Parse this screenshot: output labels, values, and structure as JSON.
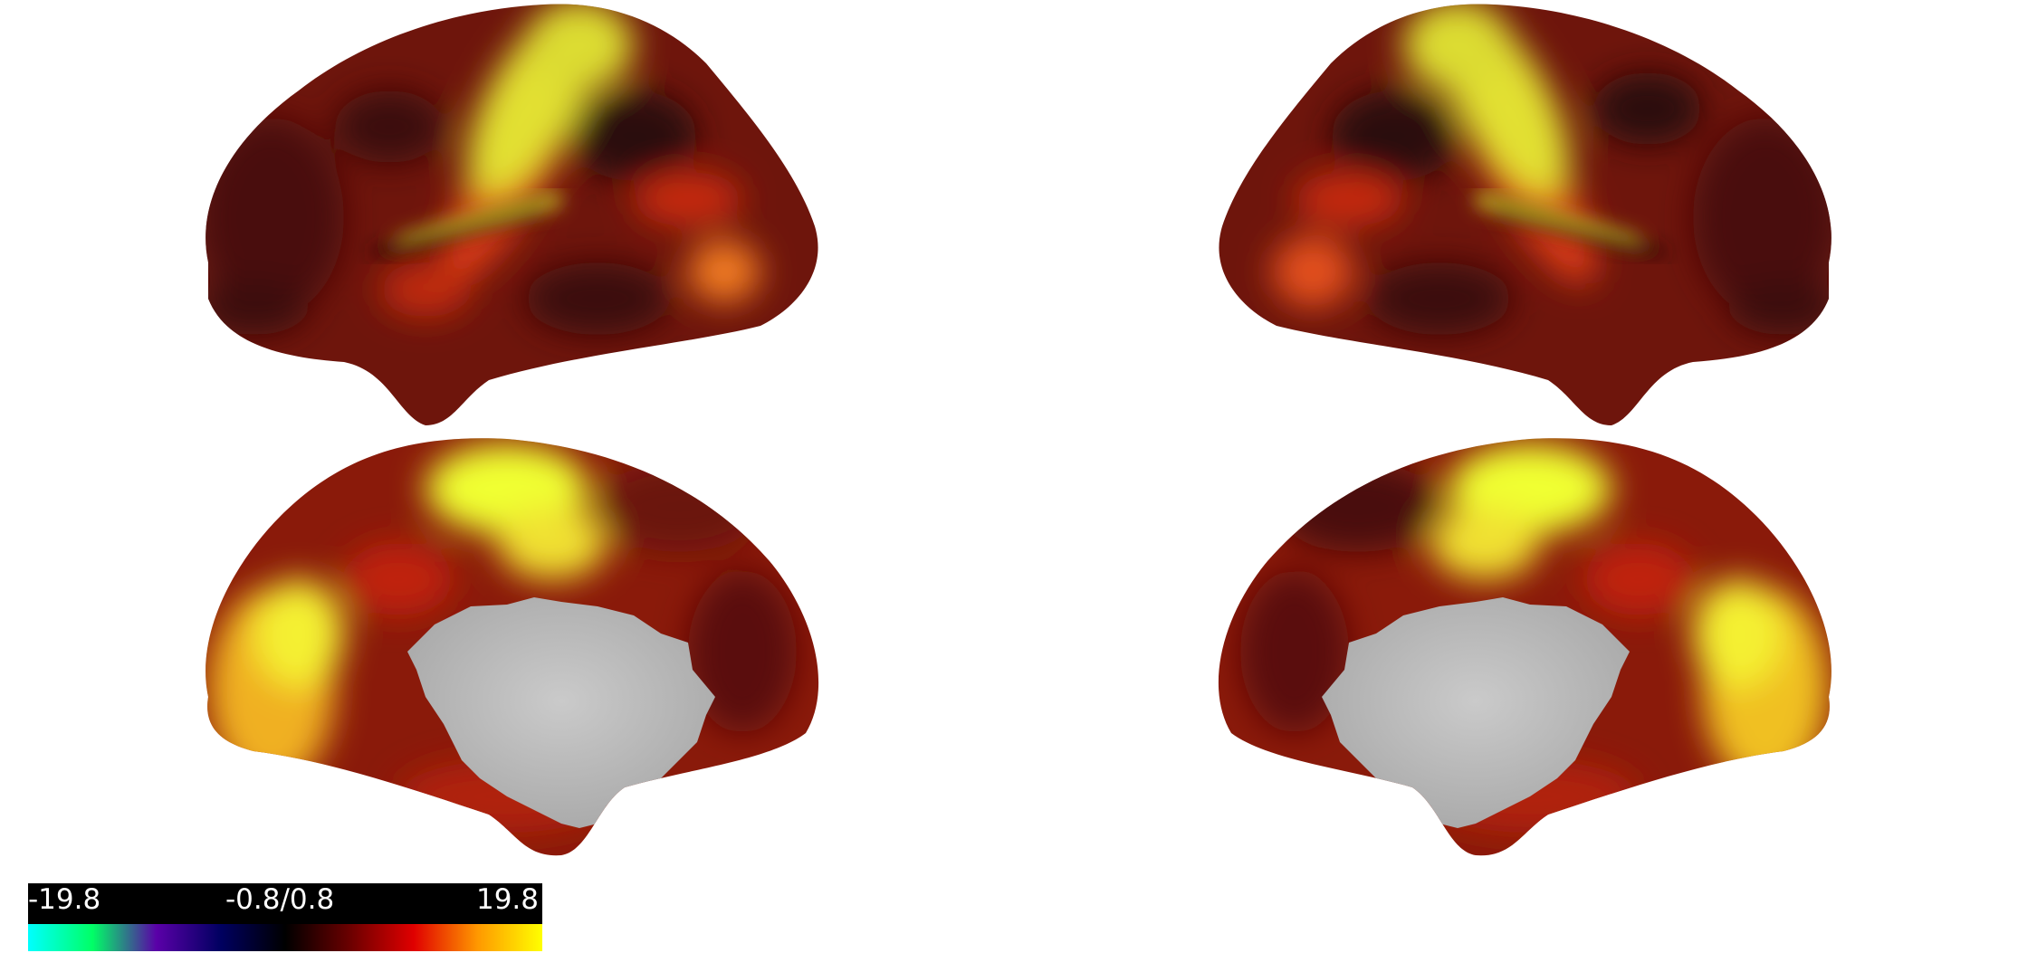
{
  "colorbar": {
    "min_label": "-19.8",
    "mid_label": "-0.8/0.8",
    "max_label": "19.8",
    "colormap_stops": [
      "#00ffff",
      "#00ff66",
      "#5a00a8",
      "#000060",
      "#000000",
      "#6a0000",
      "#e00000",
      "#ff9900",
      "#ffff00"
    ]
  },
  "colors": {
    "background": "#ffffff",
    "medial_wall": "#c2c2c2",
    "low": "#2a0d0a",
    "mid": "#8a1a0a",
    "high": "#ff3a10",
    "peak": "#f0ff30"
  }
}
